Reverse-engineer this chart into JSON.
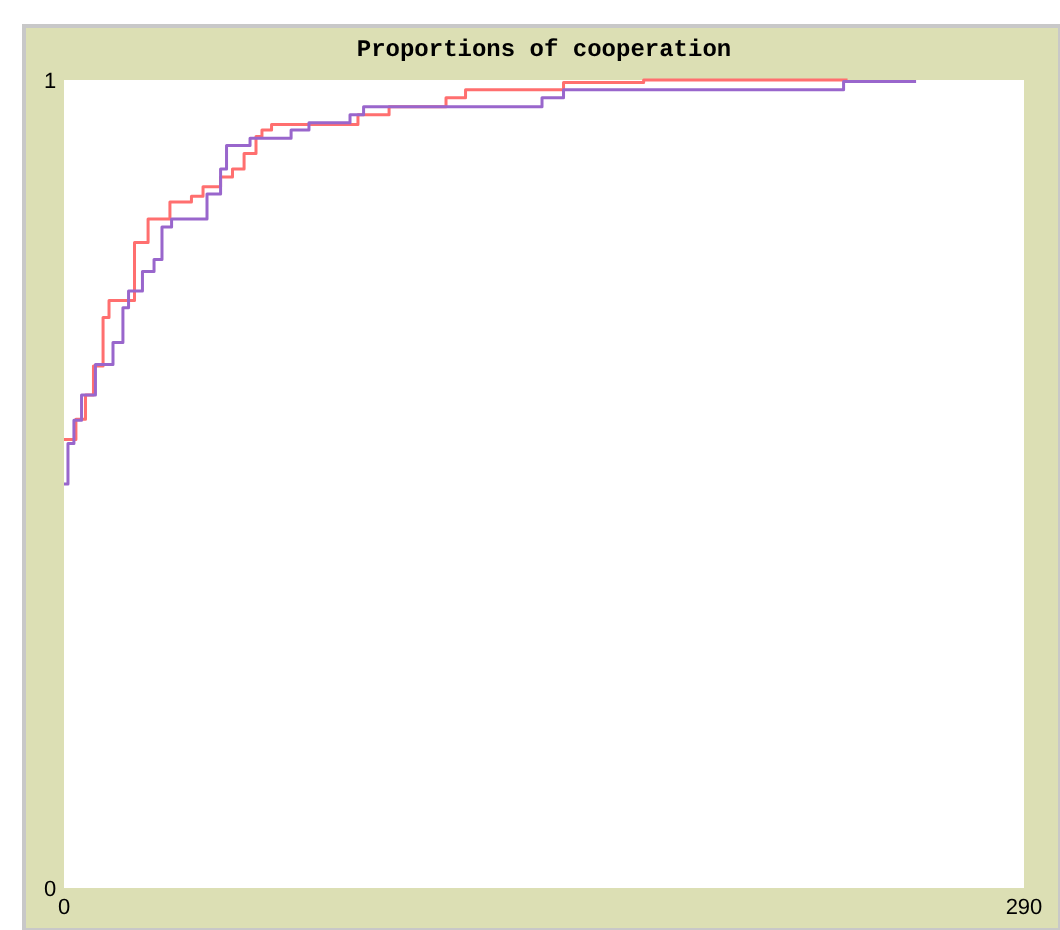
{
  "chart_data": {
    "type": "step",
    "title": "Proportions of cooperation",
    "xlim": [
      0,
      290
    ],
    "xticks": [
      0,
      290
    ],
    "ylim": [
      0,
      1
    ],
    "yticks": [
      0,
      1
    ],
    "series": [
      {
        "color": "#ff6f6f",
        "x": [
          0,
          3.6,
          6.5,
          8.9,
          11.8,
          13.6,
          21.3,
          25.4,
          32,
          38.5,
          42,
          47.3,
          50.9,
          54.4,
          58,
          59.8,
          62.7,
          88.8,
          98.2,
          115.4,
          121.3,
          150.9,
          175.1,
          236.7
        ],
        "values": [
          0.555,
          0.58,
          0.61,
          0.646,
          0.706,
          0.727,
          0.799,
          0.828,
          0.849,
          0.856,
          0.868,
          0.88,
          0.89,
          0.909,
          0.93,
          0.938,
          0.945,
          0.957,
          0.967,
          0.978,
          0.988,
          0.997,
          1.0,
          1.0
        ]
      },
      {
        "color": "#9966cc",
        "x": [
          0,
          1.2,
          3,
          5.3,
          9.5,
          14.8,
          17.8,
          19.5,
          23.7,
          27.2,
          29.6,
          32.5,
          43.2,
          47.3,
          49.1,
          56.2,
          68.6,
          74,
          86.4,
          90.5,
          144.4,
          150.9,
          235.5,
          257.4
        ],
        "values": [
          0.5,
          0.55,
          0.579,
          0.61,
          0.648,
          0.675,
          0.718,
          0.739,
          0.763,
          0.778,
          0.818,
          0.828,
          0.859,
          0.89,
          0.919,
          0.928,
          0.938,
          0.947,
          0.957,
          0.967,
          0.978,
          0.988,
          0.998,
          0.998
        ]
      }
    ]
  }
}
